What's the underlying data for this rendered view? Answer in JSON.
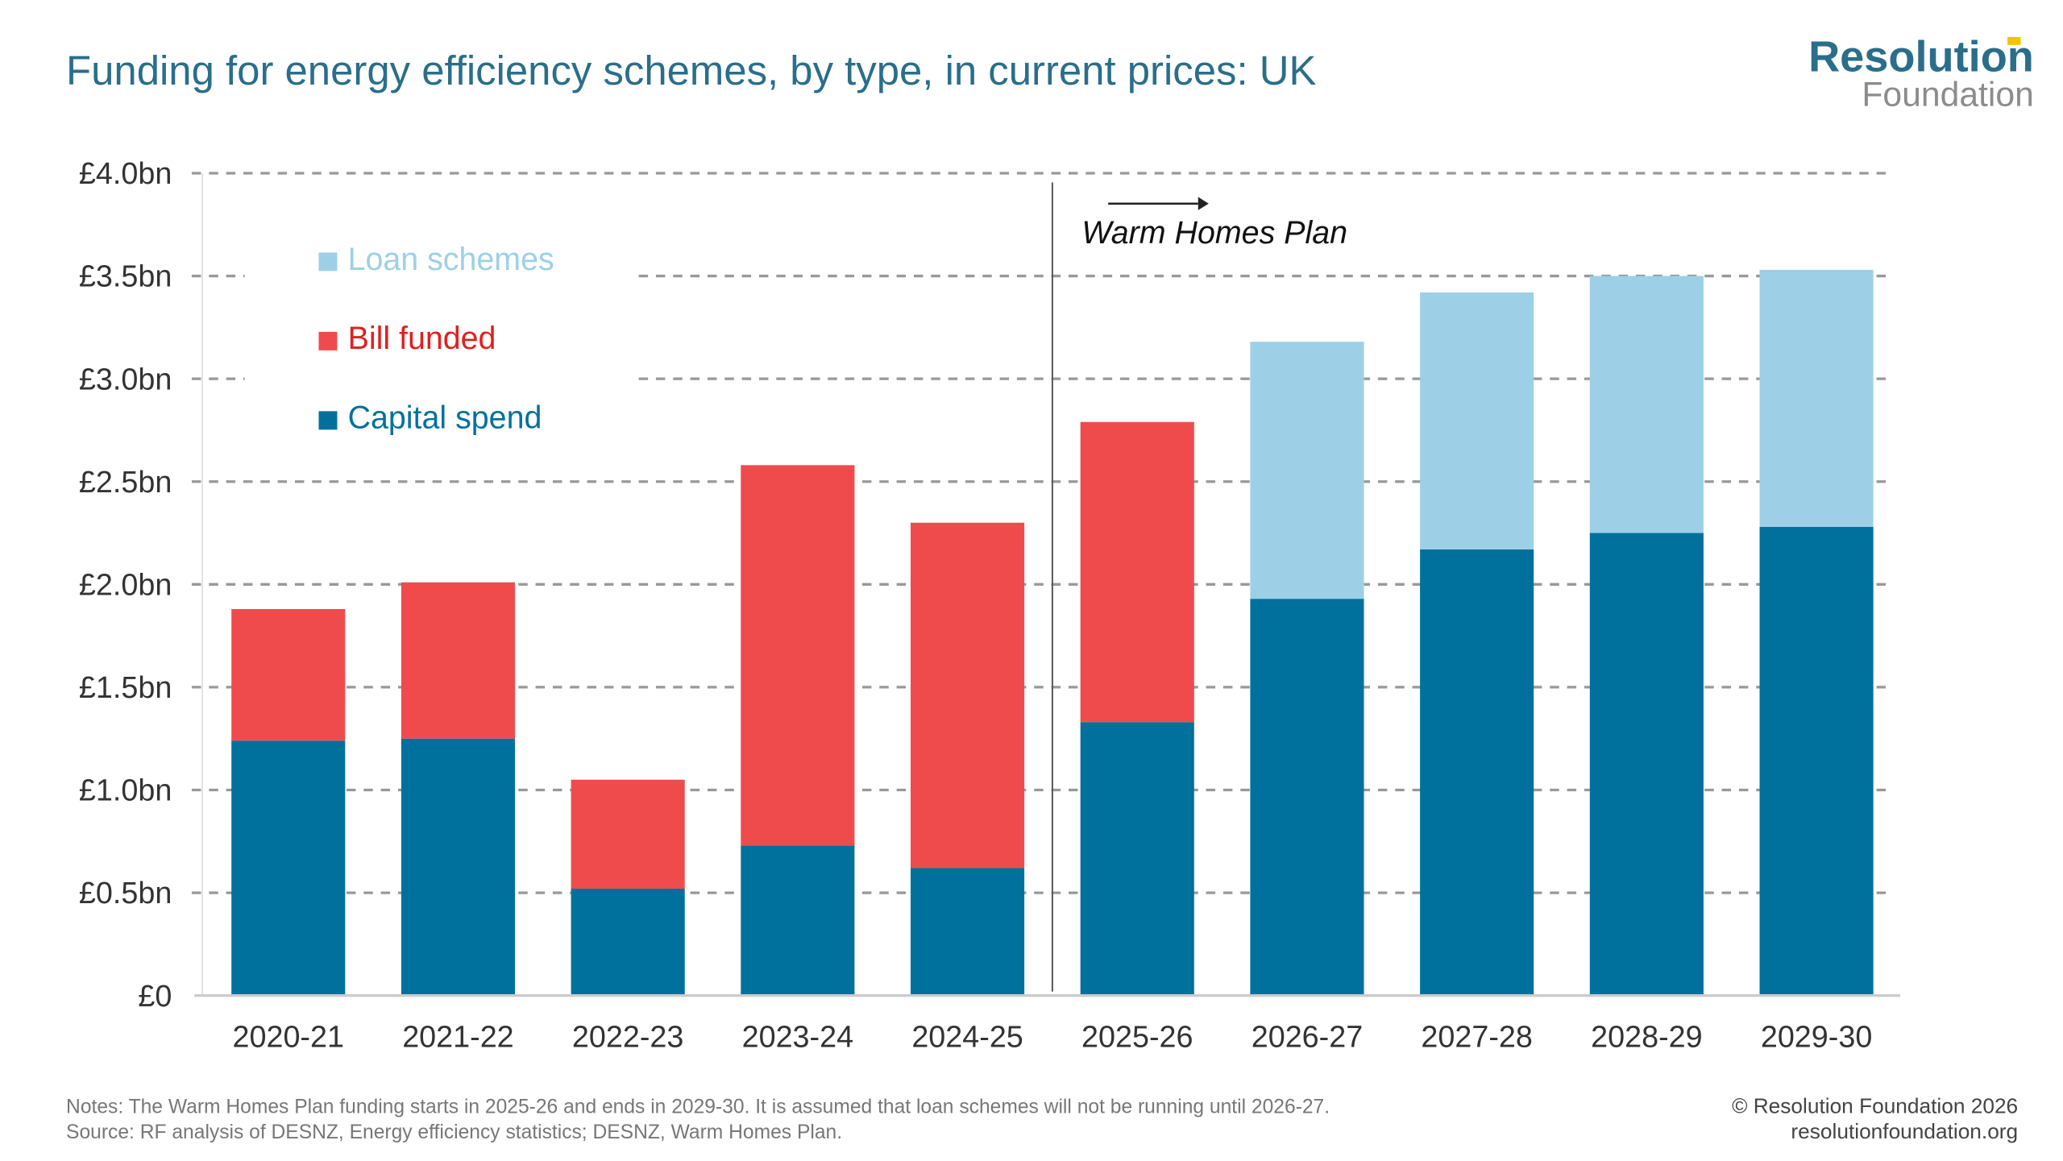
{
  "title": "Funding for energy efficiency schemes, by type, in current prices: UK",
  "logo": {
    "line1": "Resolution",
    "line2": "Foundation"
  },
  "notes": "Notes: The Warm Homes Plan funding starts in 2025-26 and ends in 2029-30. It is assumed that loan schemes will not be running until 2026-27.",
  "source": "Source: RF analysis of DESNZ, Energy efficiency statistics; DESNZ, Warm Homes Plan.",
  "copyright": "© Resolution Foundation 2026",
  "website": "resolutionfoundation.org",
  "chart_data": {
    "type": "bar",
    "stacked": true,
    "title": "Funding for energy efficiency schemes, by type, in current prices: UK",
    "xlabel": "",
    "ylabel": "",
    "ylim": [
      0,
      4.0
    ],
    "y_ticks": [
      0,
      0.5,
      1.0,
      1.5,
      2.0,
      2.5,
      3.0,
      3.5,
      4.0
    ],
    "y_tick_labels": [
      "£0",
      "£0.5bn",
      "£1.0bn",
      "£1.5bn",
      "£2.0bn",
      "£2.5bn",
      "£3.0bn",
      "£3.5bn",
      "£4.0bn"
    ],
    "grid": true,
    "legend_position": "top-left",
    "categories": [
      "2020-21",
      "2021-22",
      "2022-23",
      "2023-24",
      "2024-25",
      "2025-26",
      "2026-27",
      "2027-28",
      "2028-29",
      "2029-30"
    ],
    "series": [
      {
        "name": "Capital spend",
        "color": "#00719c",
        "values": [
          1.24,
          1.25,
          0.52,
          0.73,
          0.62,
          1.33,
          1.93,
          2.17,
          2.25,
          2.28
        ]
      },
      {
        "name": "Bill funded",
        "color": "#ef4b4d",
        "values": [
          0.64,
          0.76,
          0.53,
          1.85,
          1.68,
          1.46,
          0,
          0,
          0,
          0
        ]
      },
      {
        "name": "Loan schemes",
        "color": "#9dd0e6",
        "values": [
          0,
          0,
          0,
          0,
          0,
          0,
          1.25,
          1.25,
          1.25,
          1.25
        ]
      }
    ],
    "legend_order": [
      "Loan schemes",
      "Bill funded",
      "Capital spend"
    ],
    "legend_text_colors": {
      "Loan schemes": "#9dd0e6",
      "Bill funded": "#e02020",
      "Capital spend": "#00719c"
    },
    "annotation": {
      "text": "Warm Homes Plan",
      "after_category": "2024-25"
    }
  }
}
